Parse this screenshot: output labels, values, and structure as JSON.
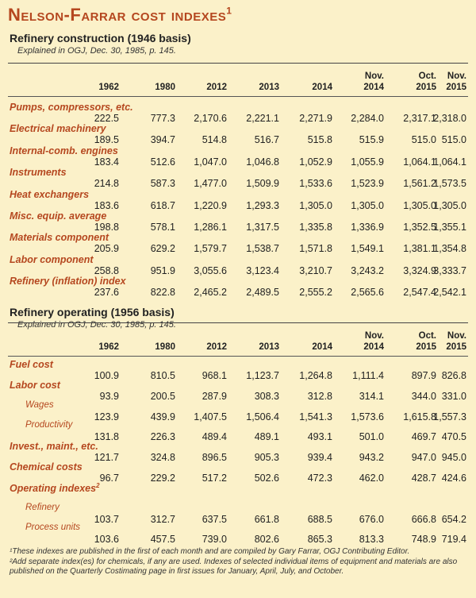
{
  "title": "Nelson-Farrar cost indexes",
  "title_sup": "1",
  "construction": {
    "heading": "Refinery construction (1946 basis)",
    "sub": "Explained in OGJ, Dec. 30, 1985, p. 145.",
    "columns": [
      [
        "",
        "1962"
      ],
      [
        "",
        "1980"
      ],
      [
        "",
        "2012"
      ],
      [
        "",
        "2013"
      ],
      [
        "",
        "2014"
      ],
      [
        "Nov.",
        "2014"
      ],
      [
        "Oct.",
        "2015"
      ],
      [
        "Nov.",
        "2015"
      ]
    ],
    "rows": [
      {
        "label": "Pumps, compressors, etc.",
        "values": [
          "222.5",
          "777.3",
          "2,170.6",
          "2,221.1",
          "2,271.9",
          "2,284.0",
          "2,317.1",
          "2,318.0"
        ]
      },
      {
        "label": "Electrical machinery",
        "values": [
          "189.5",
          "394.7",
          "514.8",
          "516.7",
          "515.8",
          "515.9",
          "515.0",
          "515.0"
        ]
      },
      {
        "label": "Internal-comb. engines",
        "values": [
          "183.4",
          "512.6",
          "1,047.0",
          "1,046.8",
          "1,052.9",
          "1,055.9",
          "1,064.1",
          "1,064.1"
        ]
      },
      {
        "label": "Instruments",
        "values": [
          "214.8",
          "587.3",
          "1,477.0",
          "1,509.9",
          "1,533.6",
          "1,523.9",
          "1,561.2",
          "1,573.5"
        ]
      },
      {
        "label": "Heat exchangers",
        "values": [
          "183.6",
          "618.7",
          "1,220.9",
          "1,293.3",
          "1,305.0",
          "1,305.0",
          "1,305.0",
          "1,305.0"
        ]
      },
      {
        "label": "Misc. equip. average",
        "values": [
          "198.8",
          "578.1",
          "1,286.1",
          "1,317.5",
          "1,335.8",
          "1,336.9",
          "1,352.5",
          "1,355.1"
        ]
      },
      {
        "label": "Materials component",
        "values": [
          "205.9",
          "629.2",
          "1,579.7",
          "1,538.7",
          "1,571.8",
          "1,549.1",
          "1,381.1",
          "1,354.8"
        ]
      },
      {
        "label": "Labor component",
        "values": [
          "258.8",
          "951.9",
          "3,055.6",
          "3,123.4",
          "3,210.7",
          "3,243.2",
          "3,324.9",
          "3,333.7"
        ]
      },
      {
        "label": "Refinery (inflation) index",
        "values": [
          "237.6",
          "822.8",
          "2,465.2",
          "2,489.5",
          "2,555.2",
          "2,565.6",
          "2,547.4",
          "2,542.1"
        ]
      }
    ]
  },
  "operating": {
    "heading": "Refinery operating (1956 basis)",
    "sub": "Explained in OGJ, Dec. 30, 1985, p. 145.",
    "columns": [
      [
        "",
        "1962"
      ],
      [
        "",
        "1980"
      ],
      [
        "",
        "2012"
      ],
      [
        "",
        "2013"
      ],
      [
        "",
        "2014"
      ],
      [
        "Nov.",
        "2014"
      ],
      [
        "Oct.",
        "2015"
      ],
      [
        "Nov.",
        "2015"
      ]
    ],
    "rows": [
      {
        "label": "Fuel cost",
        "kind": "cat",
        "values": [
          "100.9",
          "810.5",
          "968.1",
          "1,123.7",
          "1,264.8",
          "1,111.4",
          "897.9",
          "826.8"
        ]
      },
      {
        "label": "Labor cost",
        "kind": "cat",
        "values": [
          "93.9",
          "200.5",
          "287.9",
          "308.3",
          "312.8",
          "314.1",
          "344.0",
          "331.0"
        ]
      },
      {
        "label": "Wages",
        "kind": "sub",
        "values": [
          "123.9",
          "439.9",
          "1,407.5",
          "1,506.4",
          "1,541.3",
          "1,573.6",
          "1,615.8",
          "1,557.3"
        ]
      },
      {
        "label": "Productivity",
        "kind": "sub",
        "values": [
          "131.8",
          "226.3",
          "489.4",
          "489.1",
          "493.1",
          "501.0",
          "469.7",
          "470.5"
        ]
      },
      {
        "label": "Invest., maint., etc.",
        "kind": "cat",
        "values": [
          "121.7",
          "324.8",
          "896.5",
          "905.3",
          "939.4",
          "943.2",
          "947.0",
          "945.0"
        ]
      },
      {
        "label": "Chemical costs",
        "kind": "cat",
        "values": [
          "96.7",
          "229.2",
          "517.2",
          "502.6",
          "472.3",
          "462.0",
          "428.7",
          "424.6"
        ]
      },
      {
        "label": "Operating indexes",
        "kind": "cat",
        "sup": "2",
        "values": []
      },
      {
        "label": "Refinery",
        "kind": "sub",
        "values": [
          "103.7",
          "312.7",
          "637.5",
          "661.8",
          "688.5",
          "676.0",
          "666.8",
          "654.2"
        ]
      },
      {
        "label": "Process units",
        "kind": "sub",
        "values": [
          "103.6",
          "457.5",
          "739.0",
          "802.6",
          "865.3",
          "813.3",
          "748.9",
          "719.4"
        ]
      }
    ]
  },
  "notes": [
    "¹These indexes are published in the first of each month and are compiled by Gary Farrar, OGJ Contributing Editor.",
    "²Add separate index(es) for chemicals, if any are used. Indexes of selected individual items of equipment and materials are also published on the Quarterly Costimating page in first issues for January, April, July, and October."
  ]
}
